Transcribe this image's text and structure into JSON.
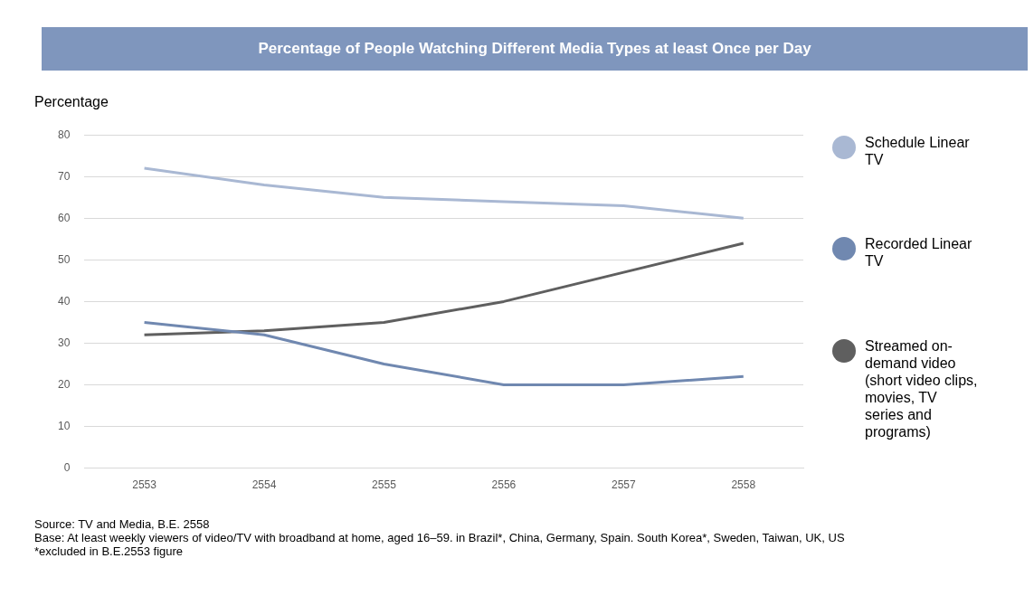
{
  "chart_data": {
    "type": "line",
    "title": "Percentage of People Watching Different Media Types at least Once per Day",
    "ylabel": "Percentage",
    "categories": [
      "2553",
      "2554",
      "2555",
      "2556",
      "2557",
      "2558"
    ],
    "series": [
      {
        "name": "Schedule Linear TV",
        "color": "#a9b8d3",
        "values": [
          72,
          68,
          65,
          64,
          63,
          60
        ]
      },
      {
        "name": "Recorded Linear TV",
        "color": "#7088b0",
        "values": [
          35,
          32,
          25,
          20,
          20,
          22
        ]
      },
      {
        "name": "Streamed on-demand video (short video clips, movies, TV series and programs)",
        "color": "#5f5f5f",
        "values": [
          32,
          33,
          35,
          40,
          47,
          54
        ]
      }
    ],
    "ylim": [
      0,
      80
    ],
    "yticks": [
      0,
      10,
      20,
      30,
      40,
      50,
      60,
      70,
      80
    ],
    "grid": "y",
    "legend": "right",
    "marker": "none",
    "line_style": "solid",
    "annotations": [
      "Source: TV and Media, B.E. 2558",
      "Base: At least weekly viewers of video/TV with broadband at home, aged 16–59. in Brazil*, China, Germany, Spain. South Korea*, Sweden, Taiwan, UK, US",
      "*excluded in B.E.2553 figure"
    ]
  }
}
